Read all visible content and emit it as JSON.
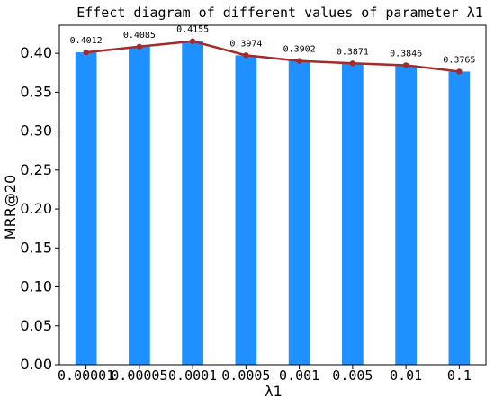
{
  "chart_data": {
    "type": "bar",
    "title": "Effect diagram of different values of parameter λ1",
    "xlabel": "λ1",
    "ylabel": "MRR@20",
    "categories": [
      "0.00001",
      "0.00005",
      "0.0001",
      "0.0005",
      "0.001",
      "0.005",
      "0.01",
      "0.1"
    ],
    "values": [
      0.4012,
      0.4085,
      0.4155,
      0.3974,
      0.3902,
      0.3871,
      0.3846,
      0.3765
    ],
    "data_labels": [
      "0.4012",
      "0.4085",
      "0.4155",
      "0.3974",
      "0.3902",
      "0.3871",
      "0.3846",
      "0.3765"
    ],
    "yticks": [
      "0.00",
      "0.05",
      "0.10",
      "0.15",
      "0.20",
      "0.25",
      "0.30",
      "0.35",
      "0.40"
    ],
    "ylim": [
      0,
      0.436
    ],
    "overlay_line": true,
    "bar_color": "#1e90ff",
    "line_color": "#a52a2a",
    "grid": false
  }
}
